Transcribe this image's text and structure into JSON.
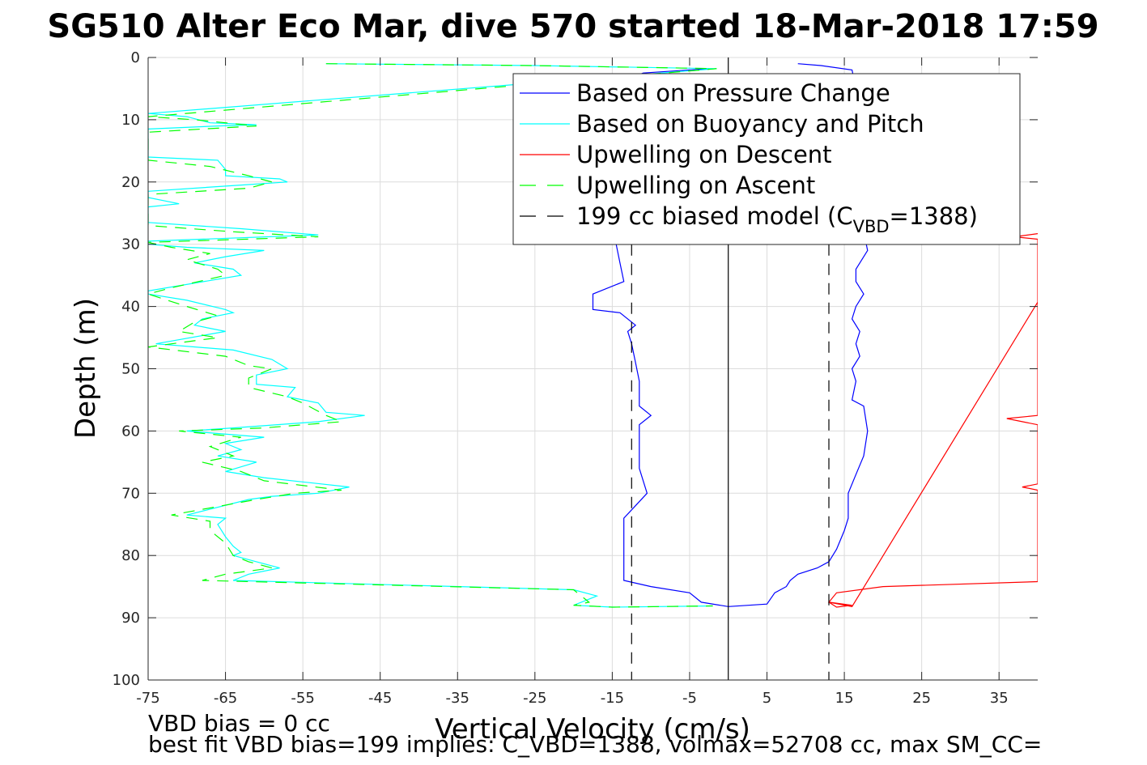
{
  "chart_data": {
    "type": "line",
    "title": "SG510 Alter Eco Mar, dive 570 started 18-Mar-2018 17:59",
    "xlabel": "Vertical Velocity (cm/s)",
    "ylabel": "Depth (m)",
    "xlim": [
      -75,
      40
    ],
    "ylim": [
      0,
      100
    ],
    "y_reversed": true,
    "grid": true,
    "xticks": [
      -75,
      -65,
      -55,
      -45,
      -35,
      -25,
      -15,
      -5,
      5,
      15,
      25,
      35
    ],
    "yticks": [
      0,
      10,
      20,
      30,
      40,
      50,
      60,
      70,
      80,
      90,
      100
    ],
    "legend_position": "top-right",
    "legend": [
      {
        "label": "Based on Pressure Change",
        "color": "#0000ff",
        "dash": "solid"
      },
      {
        "label": "Based on Buoyancy and Pitch",
        "color": "#00ffff",
        "dash": "solid"
      },
      {
        "label": "Upwelling on Descent",
        "color": "#ff0000",
        "dash": "solid"
      },
      {
        "label": "Upwelling on Ascent",
        "color": "#00ff00",
        "dash": "dashed"
      },
      {
        "label": "199 cc biased model (C",
        "sub": "VBD",
        "suffix": "=1388)",
        "color": "#000000",
        "dash": "dashed"
      }
    ],
    "series": [
      {
        "name": "Based on Pressure Change",
        "color": "#0000ff",
        "dash": "solid",
        "points": [
          [
            -2.5,
            1.8
          ],
          [
            -11,
            2.5
          ],
          [
            -13,
            3.5
          ],
          [
            -14,
            5
          ],
          [
            -14.5,
            8
          ],
          [
            -14,
            12
          ],
          [
            -14,
            16
          ],
          [
            -14.5,
            20
          ],
          [
            -14,
            24
          ],
          [
            -14,
            28
          ],
          [
            -14.5,
            30
          ],
          [
            -14,
            33
          ],
          [
            -13.5,
            36
          ],
          [
            -17.5,
            38
          ],
          [
            -17.5,
            40.5
          ],
          [
            -14,
            41
          ],
          [
            -12,
            43
          ],
          [
            -13,
            44
          ],
          [
            -12.5,
            46
          ],
          [
            -12,
            49
          ],
          [
            -11.5,
            52
          ],
          [
            -11.5,
            56
          ],
          [
            -10,
            57.5
          ],
          [
            -11.5,
            59
          ],
          [
            -11.5,
            62
          ],
          [
            -11.5,
            66
          ],
          [
            -11,
            68
          ],
          [
            -10.5,
            70
          ],
          [
            -12,
            72
          ],
          [
            -13.5,
            74
          ],
          [
            -13.5,
            77
          ],
          [
            -13.5,
            80
          ],
          [
            -13.5,
            82
          ],
          [
            -13.5,
            84
          ],
          [
            -10,
            85
          ],
          [
            -5,
            86
          ],
          [
            -3.5,
            87.5
          ],
          [
            0,
            88.2
          ],
          [
            5,
            87.8
          ],
          [
            6,
            86
          ],
          [
            7.5,
            85
          ],
          [
            8,
            84
          ],
          [
            9,
            83
          ],
          [
            11.5,
            82
          ],
          [
            13,
            81
          ],
          [
            14,
            79
          ],
          [
            15,
            76
          ],
          [
            15.5,
            74
          ],
          [
            15.5,
            70
          ],
          [
            16.5,
            67
          ],
          [
            17.5,
            64
          ],
          [
            18,
            60
          ],
          [
            17.5,
            56
          ],
          [
            16,
            55
          ],
          [
            16.5,
            52
          ],
          [
            16,
            50
          ],
          [
            17,
            48
          ],
          [
            16.5,
            46
          ],
          [
            17,
            44
          ],
          [
            16,
            42
          ],
          [
            16.5,
            40
          ],
          [
            17.5,
            38
          ],
          [
            16.5,
            36
          ],
          [
            16.5,
            34
          ],
          [
            18,
            31
          ],
          [
            17.5,
            28
          ],
          [
            17,
            24
          ],
          [
            17,
            20
          ],
          [
            17,
            16
          ],
          [
            17.5,
            12
          ],
          [
            17,
            8
          ],
          [
            16.5,
            5
          ],
          [
            16,
            2
          ],
          [
            12,
            1.3
          ],
          [
            9,
            1.0
          ]
        ]
      },
      {
        "name": "Based on Buoyancy and Pitch",
        "color": "#00ffff",
        "dash": "solid",
        "points": [
          [
            -52,
            1
          ],
          [
            -25,
            1.3
          ],
          [
            -1.5,
            1.8
          ],
          [
            -75,
            9
          ],
          [
            -70,
            9.5
          ],
          [
            -67,
            10.5
          ],
          [
            -61,
            10.8
          ],
          [
            -66,
            11
          ],
          [
            -75,
            11.5
          ],
          [
            -75,
            16
          ],
          [
            -66,
            16.5
          ],
          [
            -65,
            18
          ],
          [
            -65,
            19
          ],
          [
            -58,
            19.5
          ],
          [
            -57,
            20
          ],
          [
            -63,
            20.5
          ],
          [
            -75,
            21.5
          ],
          [
            -75,
            22.5
          ],
          [
            -71,
            23.5
          ],
          [
            -75,
            24
          ],
          [
            -75,
            26.5
          ],
          [
            -63,
            27.5
          ],
          [
            -53,
            28.5
          ],
          [
            -75,
            29.5
          ],
          [
            -75,
            30
          ],
          [
            -70,
            30.5
          ],
          [
            -60,
            31
          ],
          [
            -65,
            32
          ],
          [
            -69,
            33
          ],
          [
            -64,
            34
          ],
          [
            -63,
            35
          ],
          [
            -75,
            37.5
          ],
          [
            -75,
            38
          ],
          [
            -70,
            39
          ],
          [
            -65,
            40.5
          ],
          [
            -64,
            41
          ],
          [
            -68,
            42
          ],
          [
            -69,
            43
          ],
          [
            -65,
            44
          ],
          [
            -74,
            46
          ],
          [
            -64,
            47
          ],
          [
            -59,
            48.5
          ],
          [
            -57,
            50
          ],
          [
            -61,
            51
          ],
          [
            -61,
            52.5
          ],
          [
            -56,
            53
          ],
          [
            -57,
            54.5
          ],
          [
            -53,
            55.5
          ],
          [
            -52,
            57
          ],
          [
            -47,
            57.5
          ],
          [
            -53,
            58.5
          ],
          [
            -64,
            59.5
          ],
          [
            -70,
            60
          ],
          [
            -60,
            61
          ],
          [
            -65,
            62
          ],
          [
            -63,
            63
          ],
          [
            -66,
            64
          ],
          [
            -61,
            65
          ],
          [
            -65,
            66.5
          ],
          [
            -60,
            67.5
          ],
          [
            -49,
            69
          ],
          [
            -53,
            70
          ],
          [
            -59,
            70.5
          ],
          [
            -62,
            71
          ],
          [
            -70,
            73.5
          ],
          [
            -65,
            74
          ],
          [
            -66,
            75
          ],
          [
            -65,
            77
          ],
          [
            -64,
            78.5
          ],
          [
            -63,
            79.5
          ],
          [
            -64,
            80
          ],
          [
            -61,
            81
          ],
          [
            -58,
            82
          ],
          [
            -62,
            83
          ],
          [
            -64,
            84
          ],
          [
            -20,
            85.5
          ],
          [
            -17,
            86.5
          ],
          [
            -19,
            87.5
          ],
          [
            -20,
            88
          ],
          [
            -15,
            88.3
          ],
          [
            -2,
            88.1
          ]
        ]
      },
      {
        "name": "Upwelling on Descent",
        "color": "#ff0000",
        "dash": "solid",
        "points": [
          [
            40,
            28.3
          ],
          [
            37,
            28.8
          ],
          [
            40,
            29.2
          ],
          [
            40,
            57.5
          ],
          [
            36,
            58
          ],
          [
            38,
            58.5
          ],
          [
            40,
            59
          ],
          [
            40,
            68.5
          ],
          [
            38,
            69
          ],
          [
            40,
            69.5
          ],
          [
            40,
            84.2
          ],
          [
            20,
            85
          ],
          [
            14,
            86
          ],
          [
            13,
            87.5
          ],
          [
            16,
            88
          ],
          [
            14,
            88.3
          ],
          [
            13,
            87.5
          ],
          [
            16,
            88.2
          ],
          [
            40,
            39.3
          ]
        ]
      },
      {
        "name": "Upwelling on Ascent",
        "color": "#00ff00",
        "dash": "dashed",
        "points": [
          [
            -52,
            1
          ],
          [
            -25,
            1.3
          ],
          [
            -1.5,
            1.8
          ],
          [
            -75,
            9.5
          ],
          [
            -69,
            10
          ],
          [
            -65,
            10.5
          ],
          [
            -61,
            11
          ],
          [
            -68,
            11.5
          ],
          [
            -75,
            12
          ],
          [
            -75,
            16.5
          ],
          [
            -67,
            17.5
          ],
          [
            -62,
            19
          ],
          [
            -59,
            20
          ],
          [
            -62,
            21
          ],
          [
            -75,
            22
          ],
          [
            -75,
            27
          ],
          [
            -64,
            28
          ],
          [
            -53,
            28.8
          ],
          [
            -75,
            29.7
          ],
          [
            -72,
            30.5
          ],
          [
            -67,
            31.5
          ],
          [
            -70,
            32.5
          ],
          [
            -66,
            34
          ],
          [
            -65,
            35
          ],
          [
            -72,
            37
          ],
          [
            -75,
            38
          ],
          [
            -70,
            40
          ],
          [
            -66,
            41.5
          ],
          [
            -69,
            42.5
          ],
          [
            -71,
            44
          ],
          [
            -66,
            45
          ],
          [
            -75,
            46.5
          ],
          [
            -65,
            48
          ],
          [
            -62,
            49.5
          ],
          [
            -59,
            50
          ],
          [
            -62,
            51.5
          ],
          [
            -62,
            53
          ],
          [
            -57,
            54.5
          ],
          [
            -55,
            55.5
          ],
          [
            -52,
            57.5
          ],
          [
            -50,
            58.5
          ],
          [
            -60,
            59.5
          ],
          [
            -71,
            60
          ],
          [
            -63,
            61
          ],
          [
            -67,
            62.5
          ],
          [
            -64,
            64
          ],
          [
            -68,
            65
          ],
          [
            -63,
            66.5
          ],
          [
            -60,
            68
          ],
          [
            -50,
            69.5
          ],
          [
            -56,
            70
          ],
          [
            -61,
            71
          ],
          [
            -72,
            73.5
          ],
          [
            -67,
            74.5
          ],
          [
            -67,
            76
          ],
          [
            -65,
            78
          ],
          [
            -64,
            80
          ],
          [
            -62,
            81
          ],
          [
            -59,
            82
          ],
          [
            -65,
            83
          ],
          [
            -68,
            84
          ],
          [
            -20,
            85.5
          ],
          [
            -18,
            87.5
          ],
          [
            -20,
            88
          ],
          [
            -15,
            88.3
          ],
          [
            -2,
            88.1
          ]
        ]
      },
      {
        "name": "199 cc biased model (C_VBD=1388)",
        "color": "#000000",
        "dash": "dashed",
        "points_left": [
          [
            -12.5,
            30
          ],
          [
            -12.5,
            100
          ]
        ],
        "points_right": [
          [
            13,
            30
          ],
          [
            13,
            100
          ]
        ]
      },
      {
        "name": "zero-line",
        "color": "#000000",
        "dash": "solid",
        "points": [
          [
            0,
            0
          ],
          [
            0,
            100
          ]
        ]
      }
    ],
    "annotations": [
      "VBD bias = 0 cc",
      "best fit VBD bias=199 implies: C_VBD=1388, volmax=52708 cc, max SM_CC="
    ]
  }
}
